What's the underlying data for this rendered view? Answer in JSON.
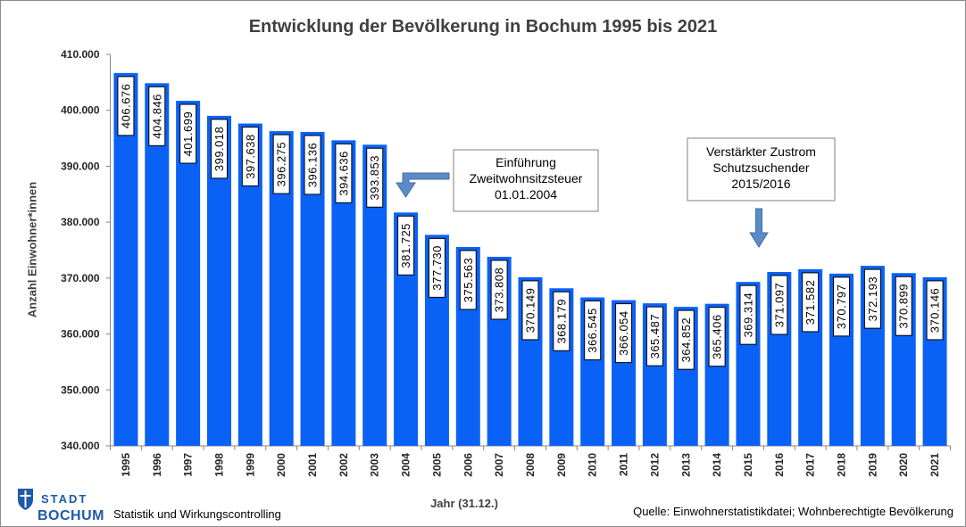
{
  "chart_data": {
    "type": "bar",
    "title": "Entwicklung der Bevölkerung in Bochum 1995 bis 2021",
    "xlabel": "Jahr (31.12.)",
    "ylabel": "Anzahl Einwohner*innen",
    "ylim": [
      340000,
      410000
    ],
    "yticks": [
      340000,
      350000,
      360000,
      370000,
      380000,
      390000,
      400000,
      410000
    ],
    "ytick_labels": [
      "340.000",
      "350.000",
      "360.000",
      "370.000",
      "380.000",
      "390.000",
      "400.000",
      "410.000"
    ],
    "grid": false,
    "legend": "none",
    "categories": [
      "1995",
      "1996",
      "1997",
      "1998",
      "1999",
      "2000",
      "2001",
      "2002",
      "2003",
      "2004",
      "2005",
      "2006",
      "2007",
      "2008",
      "2009",
      "2010",
      "2011",
      "2012",
      "2013",
      "2014",
      "2015",
      "2016",
      "2017",
      "2018",
      "2019",
      "2020",
      "2021"
    ],
    "values": [
      406676,
      404846,
      401699,
      399018,
      397638,
      396275,
      396136,
      394636,
      393853,
      381725,
      377730,
      375563,
      373808,
      370149,
      368179,
      366545,
      366054,
      365487,
      364852,
      365406,
      369314,
      371097,
      371582,
      370797,
      372193,
      370899,
      370146
    ],
    "value_labels": [
      "406.676",
      "404.846",
      "401.699",
      "399.018",
      "397.638",
      "396.275",
      "396.136",
      "394.636",
      "393.853",
      "381.725",
      "377.730",
      "375.563",
      "373.808",
      "370.149",
      "368.179",
      "366.545",
      "366.054",
      "365.487",
      "364.852",
      "365.406",
      "369.314",
      "371.097",
      "371.582",
      "370.797",
      "372.193",
      "370.899",
      "370.146"
    ],
    "annotations": [
      {
        "lines": [
          "Einführung",
          "Zweitwohnsitzsteuer",
          "01.01.2004"
        ]
      },
      {
        "lines": [
          "Verstärkter Zustrom",
          "Schutzsuchender",
          "2015/2016"
        ]
      }
    ]
  },
  "footer": {
    "logo_line1": "STADT",
    "logo_line2": "BOCHUM",
    "department": "Statistik und Wirkungscontrolling",
    "source": "Quelle: Einwohnerstatistikdatei; Wohnberechtigte Bevölkerung"
  },
  "icons": {
    "logo": "bochum-shield-icon",
    "annotation_arrows": "arrow-down-icon"
  },
  "colors": {
    "bar": "#0a61f6",
    "arrow_fill": "#5b8cc8",
    "arrow_stroke": "#3d6ea8",
    "logo": "#1f5aa8",
    "title": "#404040"
  }
}
